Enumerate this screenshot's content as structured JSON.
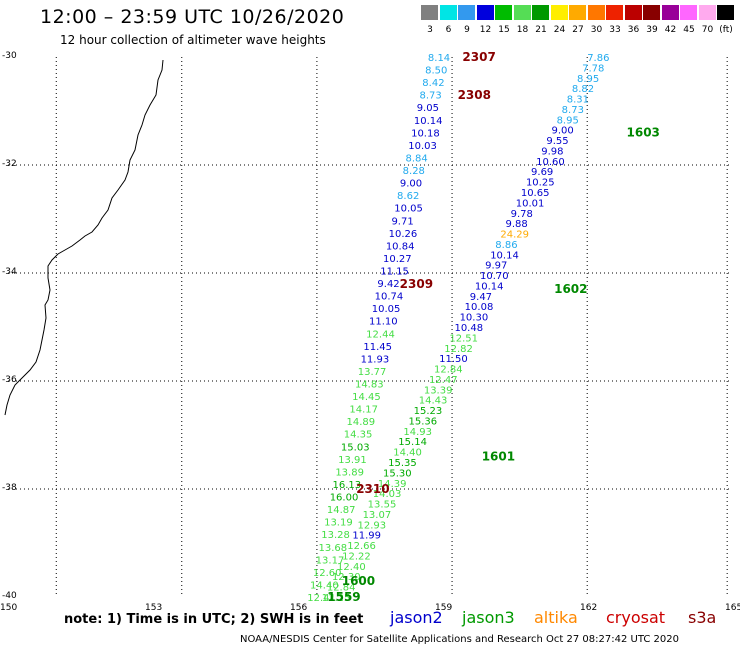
{
  "title": "12:00 – 23:59 UTC 10/26/2020",
  "subtitle": "12 hour collection of altimeter wave heights",
  "color_scale": {
    "labels": [
      "3",
      "6",
      "9",
      "12",
      "15",
      "18",
      "21",
      "24",
      "27",
      "30",
      "33",
      "36",
      "39",
      "42",
      "45",
      "70",
      "(ft)"
    ],
    "colors": [
      "#808080",
      "#00e5e5",
      "#3399ee",
      "#0000dd",
      "#00bb00",
      "#55dd55",
      "#009900",
      "#ffee00",
      "#ffaa00",
      "#ff7700",
      "#ee2200",
      "#bb0000",
      "#880000",
      "#990099",
      "#ff66ff",
      "#ffaaee",
      "#000000"
    ]
  },
  "axes": {
    "y_labels": [
      "-30",
      "-32",
      "-34",
      "-36",
      "-38",
      "-40"
    ],
    "x_labels": [
      "150",
      "153",
      "156",
      "159",
      "162",
      "165"
    ]
  },
  "note": "note:  1) Time is in UTC;  2) SWH is in feet",
  "credit": "NOAA/NESDIS Center for Satellite Applications and Research     Oct 27 08:27:42 UTC 2020",
  "legend": [
    {
      "label": "jason2",
      "color": "#0000cc"
    },
    {
      "label": "jason3",
      "color": "#009900"
    },
    {
      "label": "altika",
      "color": "#ff8800"
    },
    {
      "label": "cryosat",
      "color": "#cc0000"
    },
    {
      "label": "s3a",
      "color": "#880000"
    }
  ],
  "pass_labels": [
    {
      "text": "2307",
      "color": "#880000",
      "lon": 159.0,
      "lat": -30.0
    },
    {
      "text": "2308",
      "color": "#880000",
      "lon": 158.9,
      "lat": -30.7
    },
    {
      "text": "2309",
      "color": "#880000",
      "lon": 157.7,
      "lat": -34.2
    },
    {
      "text": "2310",
      "color": "#880000",
      "lon": 156.8,
      "lat": -38.0
    },
    {
      "text": "1603",
      "color": "#008800",
      "lon": 162.4,
      "lat": -31.4
    },
    {
      "text": "1602",
      "color": "#008800",
      "lon": 160.9,
      "lat": -34.3
    },
    {
      "text": "1601",
      "color": "#008800",
      "lon": 159.4,
      "lat": -37.4
    },
    {
      "text": "1600",
      "color": "#008800",
      "lon": 156.5,
      "lat": -39.7
    },
    {
      "text": "1559",
      "color": "#008800",
      "lon": 156.2,
      "lat": -40.0
    }
  ],
  "tracks": [
    {
      "satellite": "s3a",
      "lon_start": 158.7,
      "lon_end": 156.2,
      "lat_start": -30.0,
      "lat_end": -40.0,
      "values": [
        "8.14",
        "8.50",
        "8.42",
        "8.73",
        "9.05",
        "10.14",
        "10.18",
        "10.03",
        "8.84",
        "8.28",
        "9.00",
        "8.62",
        "10.05",
        "9.71",
        "10.26",
        "10.84",
        "10.27",
        "11.15",
        "9.42",
        "10.74",
        "10.05",
        "11.10",
        "12.44",
        "11.45",
        "11.93",
        "13.77",
        "14.83",
        "14.45",
        "14.17",
        "14.89",
        "14.35",
        "15.03",
        "13.91",
        "13.89",
        "16.13",
        "16.00",
        "14.87",
        "13.19",
        "13.28",
        "13.68",
        "13.17",
        "12.60",
        "14.40",
        "12.41"
      ]
    },
    {
      "satellite": "jason3",
      "lon_start": 162.0,
      "lon_end": 156.5,
      "lat_start": -30.0,
      "lat_end": -40.0,
      "values": [
        "7.86",
        "7.78",
        "8.95",
        "8.82",
        "8.31",
        "8.73",
        "8.95",
        "9.00",
        "9.55",
        "9.98",
        "10.60",
        "9.69",
        "10.25",
        "10.65",
        "10.01",
        "9.78",
        "9.88",
        "24.29",
        "8.86",
        "10.14",
        "9.97",
        "10.70",
        "10.14",
        "9.47",
        "10.08",
        "10.30",
        "10.48",
        "12.51",
        "12.82",
        "11.50",
        "12.84",
        "12.47",
        "13.39",
        "14.43",
        "15.23",
        "15.36",
        "14.93",
        "15.14",
        "14.40",
        "15.35",
        "15.30",
        "14.39",
        "14.03",
        "13.55",
        "13.07",
        "12.93",
        "11.99",
        "12.66",
        "12.22",
        "12.40",
        "12.30",
        "12.84",
        "12.25"
      ]
    }
  ]
}
